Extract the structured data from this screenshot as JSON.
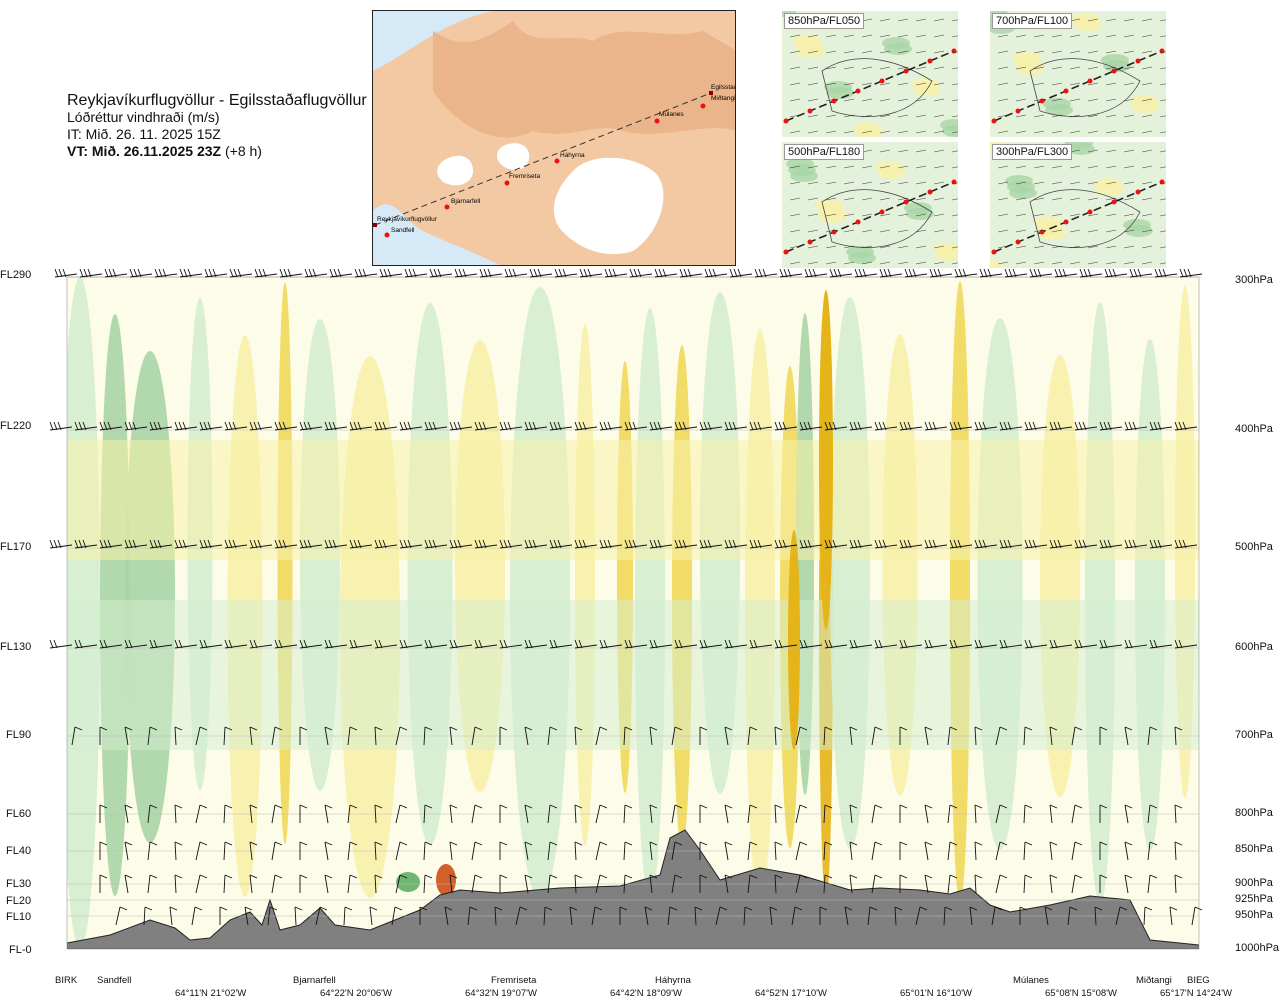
{
  "header": {
    "title": "Reykjavíkurflugvöllur - Egilsstaðaflugvöllur",
    "subtitle": "Lóðréttur vindhraði (m/s)",
    "it": "IT: Mið. 26. 11. 2025 15Z",
    "vt_bold": "VT: Mið. 26.11.2025 23Z",
    "vt_rest": " (+8 h)"
  },
  "map": {
    "points": [
      {
        "name": "Reykjavíkurflugvöllur"
      },
      {
        "name": "Sandfell"
      },
      {
        "name": "Bjarnarfell"
      },
      {
        "name": "Fremriseta"
      },
      {
        "name": "Háhyrna"
      },
      {
        "name": "Múlanes"
      },
      {
        "name": "Egilsstaðir"
      },
      {
        "name": "Miðtangi"
      }
    ]
  },
  "thumbs": [
    {
      "label": "850hPa/FL050"
    },
    {
      "label": "700hPa/FL100"
    },
    {
      "label": "500hPa/FL180"
    },
    {
      "label": "300hPa/FL300"
    }
  ],
  "colors": {
    "ground": "#808080",
    "down_light": "#d4edcf",
    "down_mid": "#a9d5a6",
    "down_dark": "#6fb673",
    "up_light": "#f8f0a8",
    "up_mid": "#f0d85a",
    "up_dark": "#e5b419",
    "up_peak": "#d2602a",
    "neutral": "#fdfce8"
  },
  "chart_data": {
    "type": "heatmap",
    "title": "Lóðréttur vindhraði (m/s)",
    "levels": [
      {
        "fl": "FL290",
        "hpa": "300hPa"
      },
      {
        "fl": "FL220",
        "hpa": "400hPa"
      },
      {
        "fl": "FL170",
        "hpa": "500hPa"
      },
      {
        "fl": "FL130",
        "hpa": "600hPa"
      },
      {
        "fl": "FL90",
        "hpa": "700hPa"
      },
      {
        "fl": "FL60",
        "hpa": "800hPa"
      },
      {
        "fl": "FL40",
        "hpa": "850hPa"
      },
      {
        "fl": "FL30",
        "hpa": "900hPa"
      },
      {
        "fl": "FL20",
        "hpa": "925hPa"
      },
      {
        "fl": "FL10",
        "hpa": "950hPa"
      },
      {
        "fl": "FL-0",
        "hpa": "1000hPa"
      }
    ],
    "locations": [
      "BIRK",
      "Sandfell",
      "Bjarnarfell",
      "Fremriseta",
      "Háhyrna",
      "Múlanes",
      "Miðtangi",
      "BIEG"
    ],
    "coordinates": [
      "64°11'N 21°02'W",
      "64°22'N 20°06'W",
      "64°32'N 19°07'W",
      "64°42'N 18°09'W",
      "64°52'N 17°10'W",
      "65°01'N 16°10'W",
      "65°08'N 15°08'W",
      "65°17'N 14°24'W"
    ]
  }
}
